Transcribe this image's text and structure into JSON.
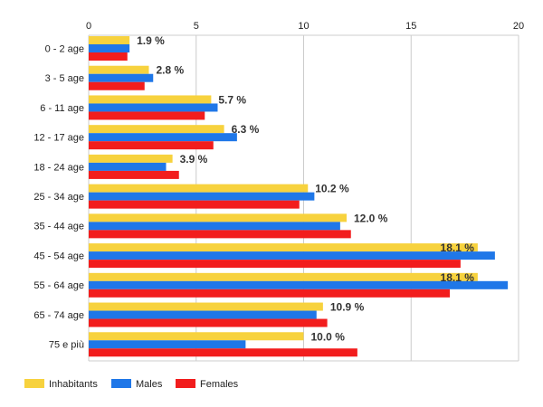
{
  "chart_data": {
    "type": "bar",
    "orientation": "horizontal",
    "title": "",
    "xlabel": "",
    "ylabel": "",
    "xlim": [
      0,
      20
    ],
    "x_ticks": [
      "0",
      "5",
      "10",
      "15",
      "20"
    ],
    "x_tick_values": [
      0,
      5,
      10,
      15,
      20
    ],
    "grid": true,
    "legend_position": "bottom-left",
    "categories": [
      "0 - 2 age",
      "3 - 5 age",
      "6 - 11 age",
      "12 - 17 age",
      "18 - 24 age",
      "25 - 34 age",
      "35 - 44 age",
      "45 - 54 age",
      "55 - 64 age",
      "65 - 74 age",
      "75 e più"
    ],
    "series": [
      {
        "name": "Inhabitants",
        "color": "#f7d23e",
        "values": [
          1.9,
          2.8,
          5.7,
          6.3,
          3.9,
          10.2,
          12.0,
          18.1,
          18.1,
          10.9,
          10.0
        ]
      },
      {
        "name": "Males",
        "color": "#1f77e8",
        "values": [
          1.9,
          3.0,
          6.0,
          6.9,
          3.6,
          10.5,
          11.7,
          18.9,
          19.5,
          10.6,
          7.3
        ]
      },
      {
        "name": "Females",
        "color": "#f21d1d",
        "values": [
          1.8,
          2.6,
          5.4,
          5.8,
          4.2,
          9.8,
          12.2,
          17.3,
          16.8,
          11.1,
          12.5
        ]
      }
    ],
    "data_labels": [
      "1.9 %",
      "2.8 %",
      "5.7 %",
      "6.3 %",
      "3.9 %",
      "10.2 %",
      "12.0 %",
      "18.1 %",
      "18.1 %",
      "10.9 %",
      "10.0 %"
    ]
  }
}
